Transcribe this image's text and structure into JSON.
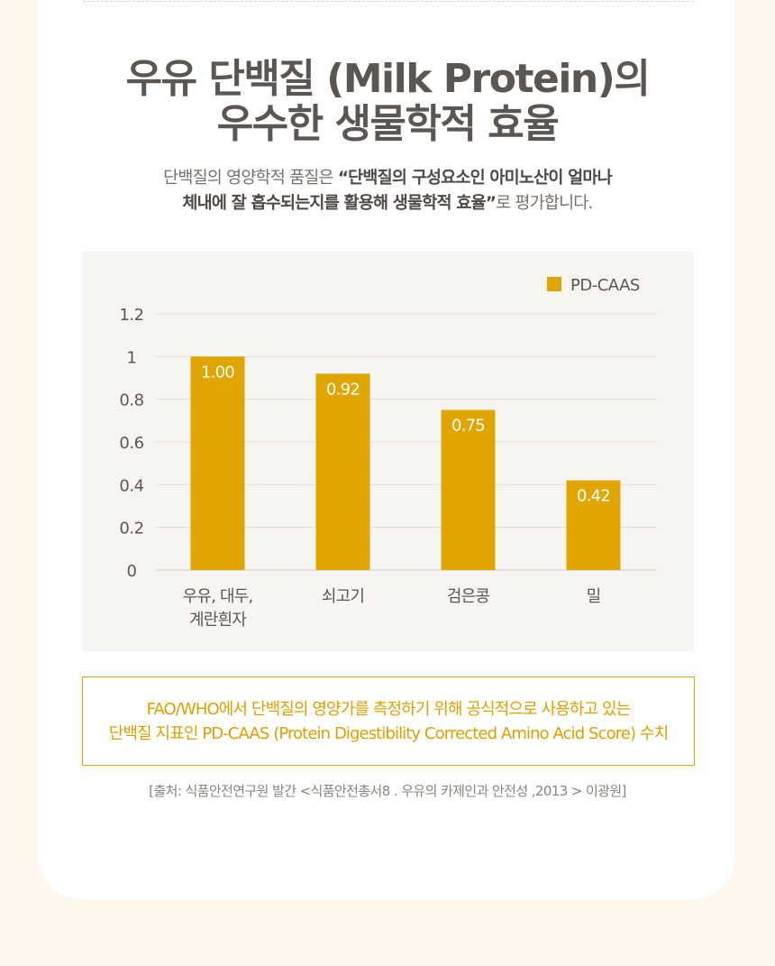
{
  "header": {
    "title_line1": "우유 단백질 (Milk Protein)의",
    "title_line2": "우수한 생물학적 효율",
    "subtitle_line1_prefix": "단백질의 영양학적 품질은 ",
    "subtitle_line1_bold": "“단백질의 구성요소인 아미노산이 얼마나",
    "subtitle_line2_bold": "체내에 잘 흡수되는지를 활용해 생물학적 효율”",
    "subtitle_line2_suffix": "로 평가합니다."
  },
  "chart_data": {
    "type": "bar",
    "categories": [
      [
        "우유, 대두,",
        "계란흰자"
      ],
      [
        "쇠고기"
      ],
      [
        "검은콩"
      ],
      [
        "밀"
      ]
    ],
    "series": [
      {
        "name": "PD-CAAS",
        "values": [
          1.0,
          0.92,
          0.75,
          0.42
        ],
        "labels": [
          "1.00",
          "0.92",
          "0.75",
          "0.42"
        ]
      }
    ],
    "ylim": [
      0,
      1.2
    ],
    "yticks": [
      "0",
      "0.2",
      "0.4",
      "0.6",
      "0.8",
      "1",
      "1.2"
    ],
    "ytick_values": [
      0,
      0.2,
      0.4,
      0.6,
      0.8,
      1,
      1.2
    ],
    "grid": true,
    "legend_position": "top-right",
    "bar_color": "#e1a500",
    "title": "",
    "xlabel": "",
    "ylabel": ""
  },
  "note": {
    "line1": "FAO/WHO에서 단백질의 영양가를 측정하기 위해 공식적으로 사용하고 있는",
    "line2": "단백질 지표인 PD-CAAS (Protein Digestibility Corrected Amino Acid Score) 수치"
  },
  "source": "[출처: 식품안전연구원 발간 <식품안전총서8 . 우유의 카제인과 안전성 ,2013 > 이광원]",
  "colors": {
    "accent": "#e1a500",
    "title": "#5c5652",
    "background": "#fdf7ee"
  }
}
